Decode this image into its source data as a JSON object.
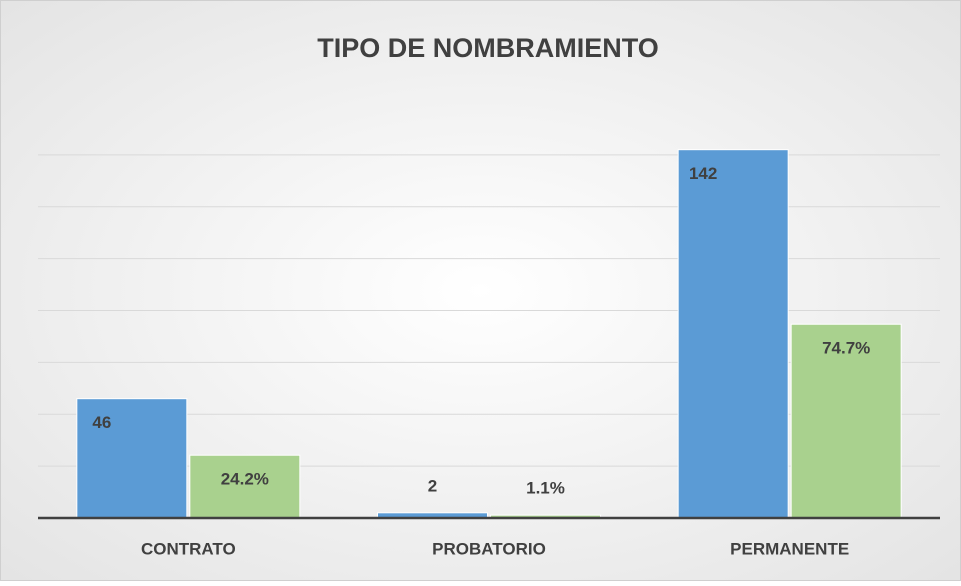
{
  "chart_data": {
    "type": "bar",
    "title": "TIPO DE NOMBRAMIENTO",
    "categories": [
      "CONTRATO",
      "PROBATORIO",
      "PERMANENTE"
    ],
    "series": [
      {
        "color": "#5b9bd5",
        "values": [
          46,
          2,
          142
        ]
      },
      {
        "color": "#a9d18e",
        "values": [
          24.2,
          1.1,
          74.7
        ],
        "value_labels": [
          "24.2%",
          "1.1%",
          "74.7%"
        ]
      }
    ],
    "ylim": [
      0,
      160
    ],
    "yticks": [
      0,
      20,
      40,
      60,
      80,
      100,
      120,
      140
    ],
    "grid": true
  }
}
